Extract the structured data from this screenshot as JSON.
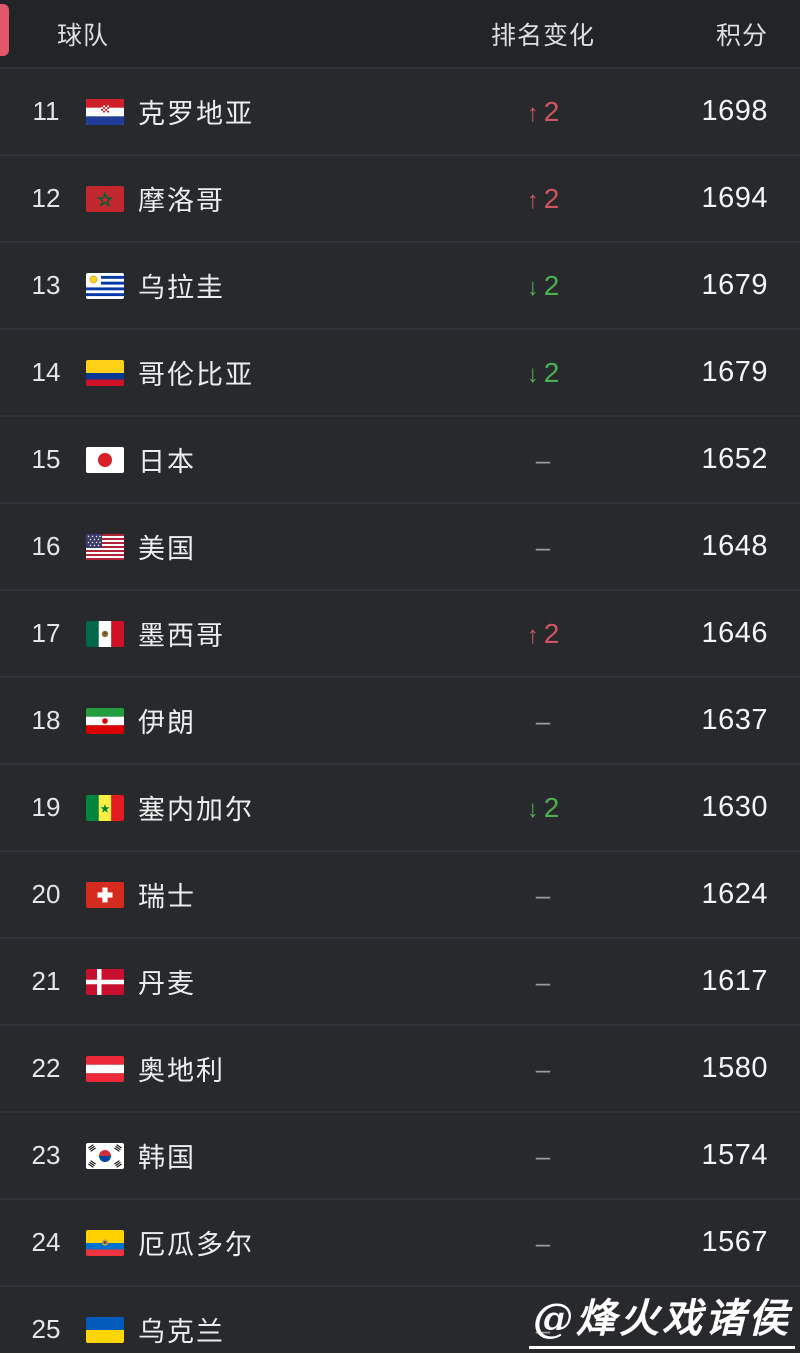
{
  "header": {
    "team": "球队",
    "rank_change": "排名变化",
    "points": "积分"
  },
  "rows": [
    {
      "rank": "11",
      "team": "克罗地亚",
      "flag": "croatia",
      "change": {
        "type": "up",
        "symbol": "↑",
        "value": "2"
      },
      "points": "1698"
    },
    {
      "rank": "12",
      "team": "摩洛哥",
      "flag": "morocco",
      "change": {
        "type": "up",
        "symbol": "↑",
        "value": "2"
      },
      "points": "1694"
    },
    {
      "rank": "13",
      "team": "乌拉圭",
      "flag": "uruguay",
      "change": {
        "type": "down",
        "symbol": "↓",
        "value": "2"
      },
      "points": "1679"
    },
    {
      "rank": "14",
      "team": "哥伦比亚",
      "flag": "colombia",
      "change": {
        "type": "down",
        "symbol": "↓",
        "value": "2"
      },
      "points": "1679"
    },
    {
      "rank": "15",
      "team": "日本",
      "flag": "japan",
      "change": {
        "type": "none",
        "symbol": "–",
        "value": ""
      },
      "points": "1652"
    },
    {
      "rank": "16",
      "team": "美国",
      "flag": "usa",
      "change": {
        "type": "none",
        "symbol": "–",
        "value": ""
      },
      "points": "1648"
    },
    {
      "rank": "17",
      "team": "墨西哥",
      "flag": "mexico",
      "change": {
        "type": "up",
        "symbol": "↑",
        "value": "2"
      },
      "points": "1646"
    },
    {
      "rank": "18",
      "team": "伊朗",
      "flag": "iran",
      "change": {
        "type": "none",
        "symbol": "–",
        "value": ""
      },
      "points": "1637"
    },
    {
      "rank": "19",
      "team": "塞内加尔",
      "flag": "senegal",
      "change": {
        "type": "down",
        "symbol": "↓",
        "value": "2"
      },
      "points": "1630"
    },
    {
      "rank": "20",
      "team": "瑞士",
      "flag": "switzerland",
      "change": {
        "type": "none",
        "symbol": "–",
        "value": ""
      },
      "points": "1624"
    },
    {
      "rank": "21",
      "team": "丹麦",
      "flag": "denmark",
      "change": {
        "type": "none",
        "symbol": "–",
        "value": ""
      },
      "points": "1617"
    },
    {
      "rank": "22",
      "team": "奥地利",
      "flag": "austria",
      "change": {
        "type": "none",
        "symbol": "–",
        "value": ""
      },
      "points": "1580"
    },
    {
      "rank": "23",
      "team": "韩国",
      "flag": "south-korea",
      "change": {
        "type": "none",
        "symbol": "–",
        "value": ""
      },
      "points": "1574"
    },
    {
      "rank": "24",
      "team": "厄瓜多尔",
      "flag": "ecuador",
      "change": {
        "type": "none",
        "symbol": "–",
        "value": ""
      },
      "points": "1567"
    },
    {
      "rank": "25",
      "team": "乌克兰",
      "flag": "ukraine",
      "change": {
        "type": "none",
        "symbol": "–",
        "value": ""
      },
      "points": ""
    }
  ],
  "watermark": "@烽火戏诸侯",
  "colors": {
    "accent": "#e4566a",
    "up": "#cf5560",
    "down": "#4caf50",
    "neutral": "#9b9b9b"
  }
}
